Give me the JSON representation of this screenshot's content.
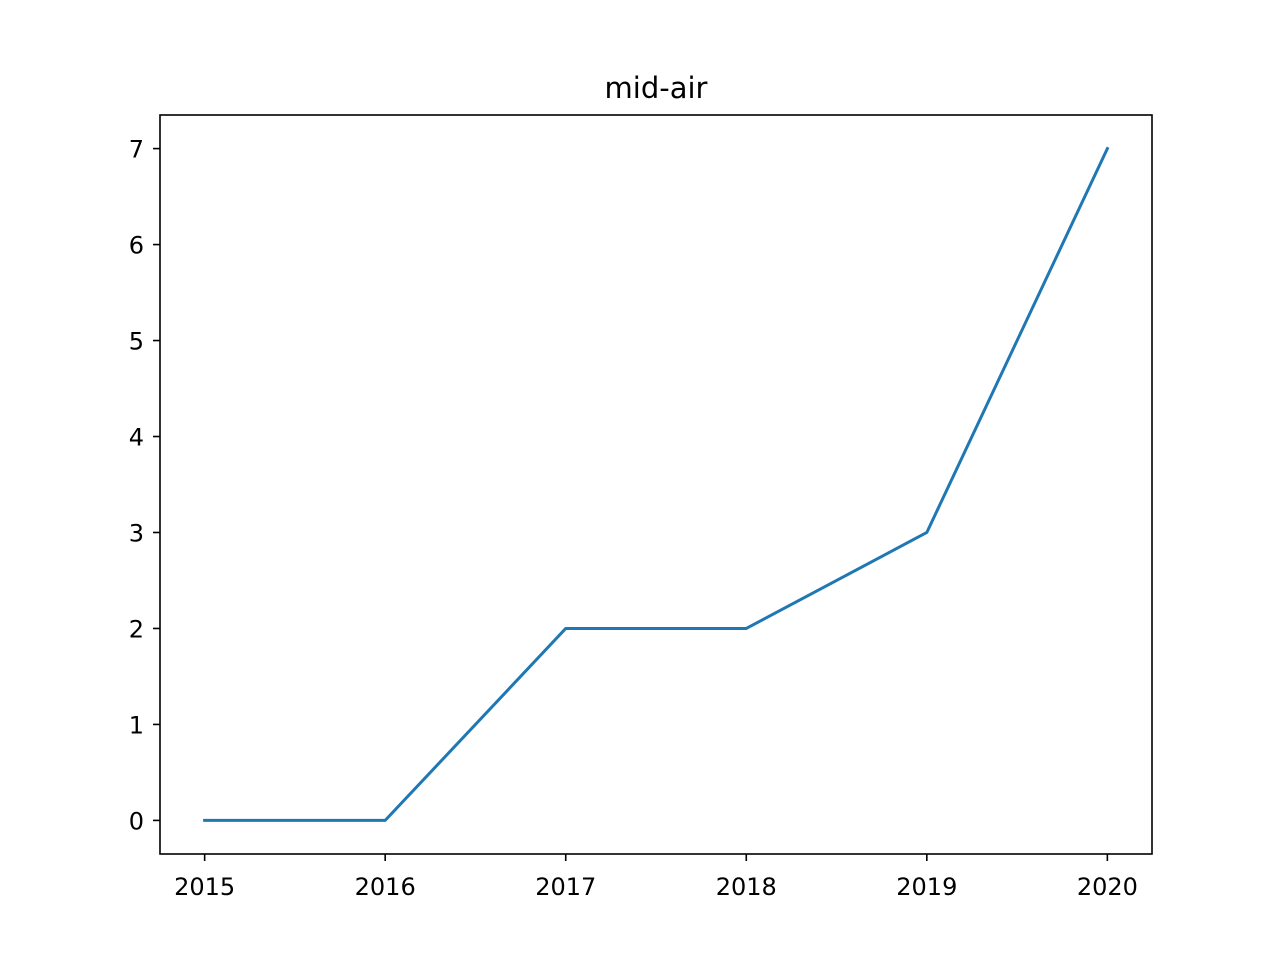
{
  "chart_data": {
    "type": "line",
    "title": "mid-air",
    "xlabel": "",
    "ylabel": "",
    "x": [
      "2015",
      "2016",
      "2017",
      "2018",
      "2019",
      "2020"
    ],
    "series": [
      {
        "values": [
          0,
          0,
          2,
          2,
          3,
          7
        ],
        "color": "#1f77b4"
      }
    ],
    "ylim": [
      -0.35,
      7.35
    ],
    "y_ticks": [
      0,
      1,
      2,
      3,
      4,
      5,
      6,
      7
    ],
    "grid": false,
    "legend": "none"
  }
}
